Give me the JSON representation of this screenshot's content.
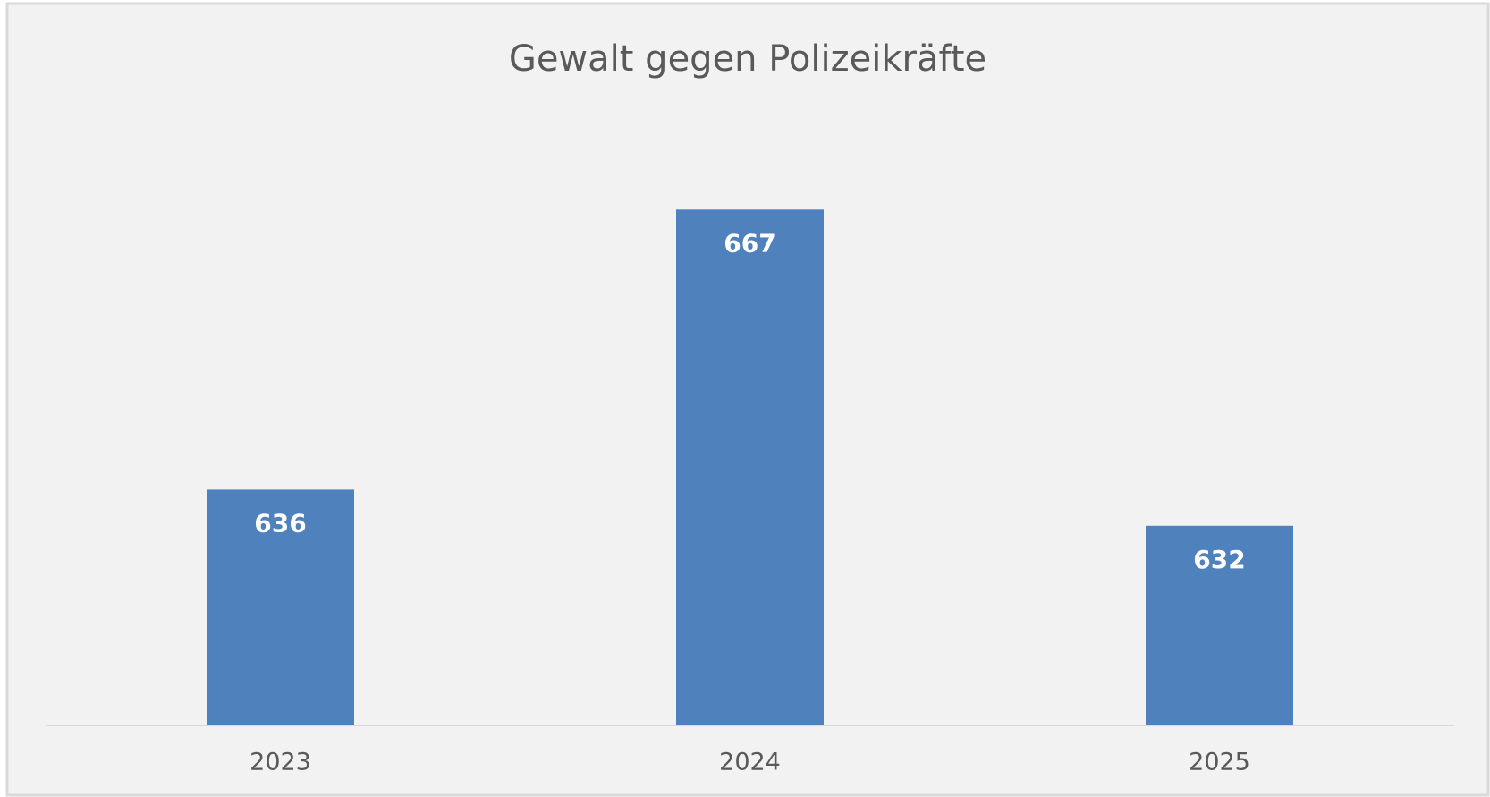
{
  "chart_data": {
    "type": "bar",
    "title": "Gewalt gegen Polizeikräfte",
    "categories": [
      "2023",
      "2024",
      "2025"
    ],
    "values": [
      636,
      667,
      632
    ],
    "color": "#4f81bd",
    "ylim": [
      610,
      675
    ]
  }
}
